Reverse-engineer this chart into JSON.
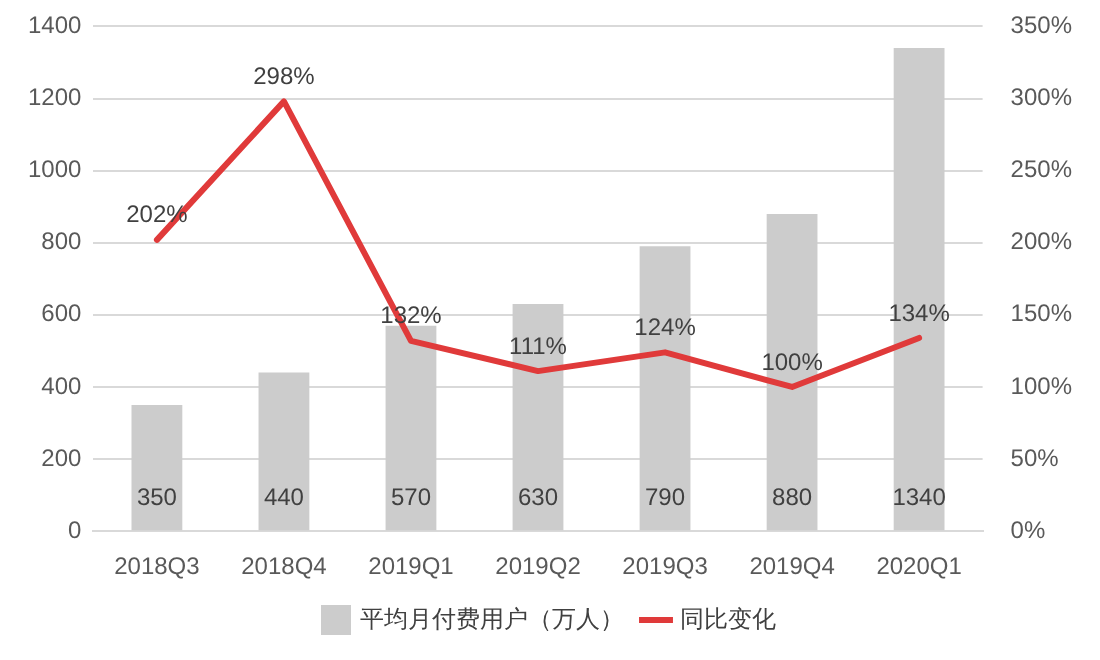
{
  "chart_data": {
    "type": "bar",
    "categories": [
      "2018Q3",
      "2018Q4",
      "2019Q1",
      "2019Q2",
      "2019Q3",
      "2019Q4",
      "2020Q1"
    ],
    "series": [
      {
        "name": "平均月付费用户（万人）",
        "color": "#cccccc",
        "values": [
          350,
          440,
          570,
          630,
          790,
          880,
          1340
        ]
      },
      {
        "name": "同比变化",
        "type": "line",
        "axis": "y2",
        "color": "#e03a3a",
        "values": [
          202,
          298,
          132,
          111,
          124,
          100,
          134
        ],
        "value_labels": [
          "202%",
          "298%",
          "132%",
          "111%",
          "124%",
          "100%",
          "134%"
        ]
      }
    ],
    "ylim": [
      0,
      1400
    ],
    "yticks": [
      0,
      200,
      400,
      600,
      800,
      1000,
      1200,
      1400
    ],
    "y2lim": [
      0,
      350
    ],
    "y2ticks": [
      {
        "value": 0,
        "label": "0%"
      },
      {
        "value": 50,
        "label": "50%"
      },
      {
        "value": 100,
        "label": "100%"
      },
      {
        "value": 150,
        "label": "150%"
      },
      {
        "value": 200,
        "label": "200%"
      },
      {
        "value": 250,
        "label": "250%"
      },
      {
        "value": 300,
        "label": "300%"
      },
      {
        "value": 350,
        "label": "350%"
      }
    ],
    "grid": "y",
    "legend": "bottom",
    "data_labels": true,
    "marker": "none",
    "line_style": "solid"
  }
}
